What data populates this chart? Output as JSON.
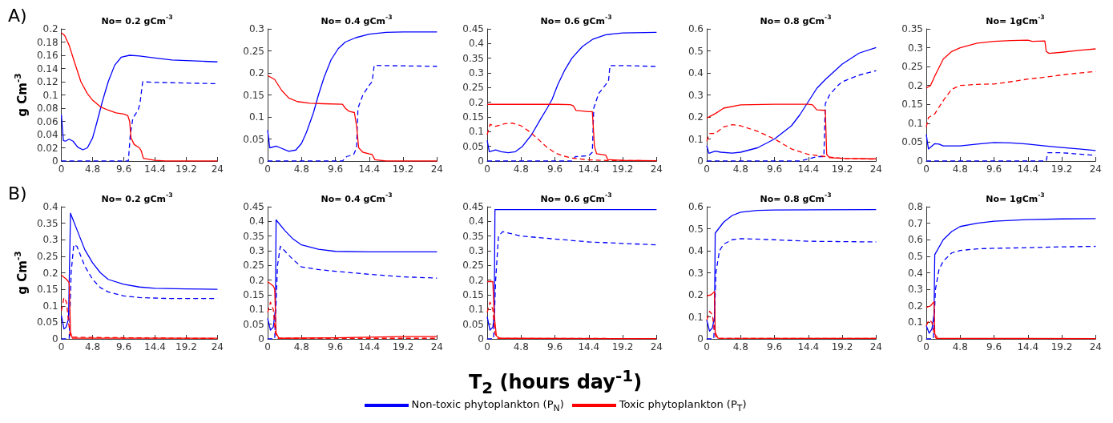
{
  "chart_data": [
    {
      "type": "line",
      "title": "No= 0.2 gCm$^{-3}$",
      "ylabel": "g Cm$^{-3}$",
      "annotations": [
        "A)"
      ],
      "marker": "none",
      "xlim": [
        0,
        24
      ],
      "xticks": [
        0,
        4.8,
        9.6,
        14.4,
        19.2,
        24
      ],
      "ylim": [
        0,
        0.2
      ],
      "yticks": [
        0,
        0.02,
        0.04,
        0.06,
        0.08,
        0.1,
        0.12,
        0.14,
        0.16,
        0.18,
        0.2
      ],
      "series": [
        {
          "color": "#0000ff",
          "line_style": "solid",
          "x": [
            0,
            0.3,
            0.6,
            1.2,
            1.8,
            2.5,
            3.3,
            4,
            4.8,
            5.5,
            6.3,
            7.2,
            8.2,
            9.2,
            10.5,
            12,
            14.4,
            17,
            19.2,
            21.6,
            24
          ],
          "values": [
            0.07,
            0.031,
            0.03,
            0.033,
            0.03,
            0.021,
            0.017,
            0.02,
            0.035,
            0.06,
            0.09,
            0.12,
            0.145,
            0.157,
            0.16,
            0.159,
            0.156,
            0.153,
            0.152,
            0.151,
            0.15
          ]
        },
        {
          "color": "#0000ff",
          "line_style": "dashed",
          "x": [
            0,
            10.3,
            10.6,
            11,
            11.8,
            12.1,
            12.5,
            14.4,
            19.2,
            24
          ],
          "values": [
            0,
            0,
            0.04,
            0.065,
            0.077,
            0.088,
            0.12,
            0.119,
            0.118,
            0.117
          ]
        },
        {
          "color": "#ff0000",
          "line_style": "solid",
          "x": [
            0,
            0.5,
            1.2,
            2,
            3,
            4,
            4.8,
            6,
            7.2,
            8.4,
            9.6,
            10.2,
            10.5,
            10.7,
            11.2,
            12,
            12.3,
            12.6,
            14.4,
            16,
            24
          ],
          "values": [
            0.194,
            0.19,
            0.175,
            0.15,
            0.12,
            0.102,
            0.092,
            0.082,
            0.077,
            0.073,
            0.071,
            0.069,
            0.06,
            0.035,
            0.025,
            0.02,
            0.015,
            0.004,
            0.001,
            0,
            0
          ]
        }
      ]
    },
    {
      "type": "line",
      "title": "No= 0.4 gCm$^{-3}$",
      "marker": "none",
      "xlim": [
        0,
        24
      ],
      "xticks": [
        0,
        4.8,
        9.6,
        14.4,
        19.2,
        24
      ],
      "ylim": [
        0,
        0.3
      ],
      "yticks": [
        0,
        0.05,
        0.1,
        0.15,
        0.2,
        0.25,
        0.3
      ],
      "series": [
        {
          "color": "#0000ff",
          "line_style": "solid",
          "x": [
            0,
            0.3,
            1.2,
            1.8,
            3,
            4,
            4.8,
            5.5,
            6.5,
            7.2,
            8,
            9,
            10,
            11,
            12.5,
            14.4,
            16.8,
            19.2,
            24
          ],
          "values": [
            0.07,
            0.03,
            0.034,
            0.03,
            0.022,
            0.025,
            0.04,
            0.065,
            0.11,
            0.15,
            0.19,
            0.23,
            0.255,
            0.27,
            0.28,
            0.288,
            0.292,
            0.293,
            0.293
          ]
        },
        {
          "color": "#0000ff",
          "line_style": "dashed",
          "x": [
            0,
            10.6,
            11.2,
            12.2,
            12.6,
            12.8,
            13.5,
            14.4,
            14.8,
            15.1,
            19.2,
            24
          ],
          "values": [
            0,
            0,
            0.01,
            0.015,
            0.03,
            0.12,
            0.15,
            0.172,
            0.18,
            0.217,
            0.216,
            0.215
          ]
        },
        {
          "color": "#ff0000",
          "line_style": "solid",
          "x": [
            0,
            1,
            2,
            3,
            4.2,
            6,
            8,
            10.6,
            11,
            11.5,
            12.3,
            12.6,
            12.9,
            13.5,
            14.4,
            14.8,
            15.2,
            16.8,
            24
          ],
          "values": [
            0.194,
            0.185,
            0.16,
            0.143,
            0.135,
            0.131,
            0.13,
            0.129,
            0.12,
            0.113,
            0.11,
            0.08,
            0.03,
            0.02,
            0.016,
            0.015,
            0.003,
            0,
            0
          ]
        }
      ]
    },
    {
      "type": "line",
      "title": "No= 0.6 gCm$^{-3}$",
      "marker": "none",
      "xlim": [
        0,
        24
      ],
      "xticks": [
        0,
        4.8,
        9.6,
        14.4,
        19.2,
        24
      ],
      "ylim": [
        0,
        0.45
      ],
      "yticks": [
        0,
        0.05,
        0.1,
        0.15,
        0.2,
        0.25,
        0.3,
        0.35,
        0.4,
        0.45
      ],
      "series": [
        {
          "color": "#0000ff",
          "line_style": "solid",
          "x": [
            0,
            0.3,
            1.2,
            2,
            3,
            4,
            5,
            6.3,
            7.5,
            8.5,
            9.2,
            10,
            11,
            12,
            13.5,
            15,
            16.8,
            19.2,
            24
          ],
          "values": [
            0.07,
            0.032,
            0.038,
            0.032,
            0.028,
            0.032,
            0.05,
            0.09,
            0.14,
            0.18,
            0.21,
            0.26,
            0.31,
            0.35,
            0.39,
            0.415,
            0.43,
            0.436,
            0.438
          ]
        },
        {
          "color": "#0000ff",
          "line_style": "dashed",
          "x": [
            0,
            12,
            12.5,
            14.4,
            14.9,
            15.1,
            15.8,
            16.8,
            17.2,
            17.4,
            19.2,
            24
          ],
          "values": [
            0,
            0,
            0.015,
            0.018,
            0.03,
            0.18,
            0.23,
            0.26,
            0.275,
            0.325,
            0.325,
            0.322
          ]
        },
        {
          "color": "#ff0000",
          "line_style": "solid",
          "x": [
            0,
            10,
            11.8,
            12.2,
            12.6,
            14.4,
            14.9,
            15.2,
            15.5,
            16.8,
            17.1,
            19.2,
            24
          ],
          "values": [
            0.193,
            0.193,
            0.192,
            0.188,
            0.172,
            0.168,
            0.168,
            0.05,
            0.025,
            0.02,
            0.005,
            0.002,
            0.001
          ]
        },
        {
          "color": "#ff0000",
          "line_style": "dashed",
          "x": [
            0,
            0.4,
            1.2,
            2.5,
            3.6,
            4.8,
            6,
            7.2,
            8.4,
            9.6,
            10.8,
            12,
            14.4,
            16.8,
            24
          ],
          "values": [
            0.09,
            0.125,
            0.118,
            0.127,
            0.129,
            0.12,
            0.1,
            0.075,
            0.048,
            0.028,
            0.017,
            0.01,
            0.004,
            0.002,
            0.001
          ]
        }
      ]
    },
    {
      "type": "line",
      "title": "No= 0.8 gCm$^{-3}$",
      "marker": "none",
      "xlim": [
        0,
        24
      ],
      "xticks": [
        0,
        4.8,
        9.6,
        14.4,
        19.2,
        24
      ],
      "ylim": [
        0,
        0.6
      ],
      "yticks": [
        0,
        0.1,
        0.2,
        0.3,
        0.4,
        0.5,
        0.6
      ],
      "series": [
        {
          "color": "#0000ff",
          "line_style": "solid",
          "x": [
            0,
            0.3,
            1.2,
            2,
            3.6,
            4.8,
            7.2,
            9.6,
            12,
            13.2,
            14.4,
            15.6,
            16.8,
            19.2,
            21.6,
            24
          ],
          "values": [
            0.07,
            0.035,
            0.045,
            0.04,
            0.036,
            0.04,
            0.06,
            0.1,
            0.16,
            0.21,
            0.27,
            0.33,
            0.37,
            0.44,
            0.49,
            0.515
          ]
        },
        {
          "color": "#0000ff",
          "line_style": "dashed",
          "x": [
            0,
            13.2,
            14.4,
            15.6,
            16.6,
            16.8,
            17.4,
            18.5,
            19.2,
            21.6,
            24
          ],
          "values": [
            0,
            0,
            0.01,
            0.02,
            0.02,
            0.26,
            0.3,
            0.34,
            0.36,
            0.39,
            0.41
          ]
        },
        {
          "color": "#ff0000",
          "line_style": "solid",
          "x": [
            0,
            1.2,
            2.4,
            4.8,
            9.6,
            14.4,
            15,
            15.6,
            16.8,
            17,
            17.4,
            19.2,
            24
          ],
          "values": [
            0.195,
            0.215,
            0.24,
            0.255,
            0.258,
            0.258,
            0.255,
            0.232,
            0.23,
            0.03,
            0.015,
            0.012,
            0.01
          ]
        },
        {
          "color": "#ff0000",
          "line_style": "dashed",
          "x": [
            0,
            0.4,
            1.2,
            2.4,
            3.6,
            4.8,
            7.2,
            9.6,
            12,
            14.4,
            16.8,
            19.2,
            24
          ],
          "values": [
            0.09,
            0.125,
            0.125,
            0.155,
            0.165,
            0.16,
            0.135,
            0.1,
            0.055,
            0.03,
            0.02,
            0.012,
            0.008
          ]
        }
      ]
    },
    {
      "type": "line",
      "title": "No= 1gCm$^{-3}$",
      "marker": "none",
      "xlim": [
        0,
        24
      ],
      "xticks": [
        0,
        4.8,
        9.6,
        14.4,
        19.2,
        24
      ],
      "ylim": [
        0,
        0.35
      ],
      "yticks": [
        0,
        0.05,
        0.1,
        0.15,
        0.2,
        0.25,
        0.3,
        0.35
      ],
      "series": [
        {
          "color": "#0000ff",
          "line_style": "solid",
          "x": [
            0,
            0.3,
            1.2,
            1.8,
            2.4,
            4.8,
            7.2,
            9.6,
            12,
            14.4,
            16.8,
            19.2,
            21.6,
            24
          ],
          "values": [
            0.07,
            0.032,
            0.046,
            0.045,
            0.04,
            0.04,
            0.045,
            0.049,
            0.048,
            0.045,
            0.04,
            0.036,
            0.032,
            0.028
          ]
        },
        {
          "color": "#0000ff",
          "line_style": "dashed",
          "x": [
            0,
            14.4,
            17,
            17.2,
            19.2,
            24
          ],
          "values": [
            0,
            0,
            0,
            0.022,
            0.022,
            0.015
          ]
        },
        {
          "color": "#ff0000",
          "line_style": "solid",
          "x": [
            0,
            0.6,
            1.2,
            2.4,
            3.6,
            4.8,
            7.2,
            9.6,
            12,
            14.4,
            15,
            16.8,
            17,
            17.4,
            19.2,
            21.6,
            24
          ],
          "values": [
            0.193,
            0.2,
            0.225,
            0.27,
            0.29,
            0.3,
            0.312,
            0.317,
            0.319,
            0.32,
            0.317,
            0.318,
            0.29,
            0.285,
            0.288,
            0.293,
            0.297
          ]
        },
        {
          "color": "#ff0000",
          "line_style": "dashed",
          "x": [
            0,
            0.3,
            1.2,
            2.4,
            3.6,
            4.8,
            7.2,
            9.6,
            12,
            14.4,
            16.8,
            19.2,
            21.6,
            24
          ],
          "values": [
            0.09,
            0.115,
            0.125,
            0.16,
            0.19,
            0.2,
            0.203,
            0.204,
            0.21,
            0.217,
            0.222,
            0.228,
            0.233,
            0.237
          ]
        }
      ]
    },
    {
      "type": "line",
      "title": "No= 0.2 gCm$^{-3}$",
      "ylabel": "g Cm$^{-3}$",
      "annotations": [
        "B)"
      ],
      "marker": "none",
      "xlim": [
        0,
        24
      ],
      "xticks": [
        0,
        4.8,
        9.6,
        14.4,
        19.2,
        24
      ],
      "ylim": [
        0,
        0.4
      ],
      "yticks": [
        0,
        0.05,
        0.1,
        0.15,
        0.2,
        0.25,
        0.3,
        0.35,
        0.4
      ],
      "series": [
        {
          "color": "#0000ff",
          "line_style": "solid",
          "x": [
            0,
            0.4,
            0.7,
            1.1,
            1.4,
            2.4,
            3.6,
            4.8,
            6,
            7.2,
            9.6,
            12,
            14.4,
            19.2,
            24
          ],
          "values": [
            0.07,
            0.03,
            0.035,
            0.06,
            0.38,
            0.33,
            0.27,
            0.23,
            0.2,
            0.18,
            0.165,
            0.157,
            0.153,
            0.151,
            0.15
          ]
        },
        {
          "color": "#0000ff",
          "line_style": "dashed",
          "x": [
            0,
            1.2,
            1.5,
            1.9,
            2.4,
            3.6,
            4.8,
            6,
            7.2,
            9.6,
            12,
            16.8,
            24
          ],
          "values": [
            0,
            0,
            0.2,
            0.285,
            0.28,
            0.22,
            0.18,
            0.155,
            0.142,
            0.13,
            0.125,
            0.122,
            0.122
          ]
        },
        {
          "color": "#ff0000",
          "line_style": "solid",
          "x": [
            0,
            0.8,
            1.2,
            1.4,
            1.7,
            24
          ],
          "values": [
            0.193,
            0.18,
            0.17,
            0.02,
            0.002,
            0.002
          ]
        },
        {
          "color": "#ff0000",
          "line_style": "dashed",
          "x": [
            0,
            0.4,
            0.8,
            1.1,
            1.4,
            24
          ],
          "values": [
            0.085,
            0.125,
            0.11,
            0.05,
            0.005,
            0.001
          ]
        }
      ]
    },
    {
      "type": "line",
      "title": "No= 0.4 gCm$^{-3}$",
      "marker": "none",
      "xlim": [
        0,
        24
      ],
      "xticks": [
        0,
        4.8,
        9.6,
        14.4,
        19.2,
        24
      ],
      "ylim": [
        0,
        0.45
      ],
      "yticks": [
        0,
        0.05,
        0.1,
        0.15,
        0.2,
        0.25,
        0.3,
        0.35,
        0.4,
        0.45
      ],
      "series": [
        {
          "color": "#0000ff",
          "line_style": "solid",
          "x": [
            0,
            0.4,
            0.8,
            1.1,
            1.2,
            2.4,
            3.6,
            4.8,
            7.2,
            9.6,
            14.4,
            24
          ],
          "values": [
            0.07,
            0.03,
            0.04,
            0.1,
            0.405,
            0.37,
            0.34,
            0.32,
            0.305,
            0.298,
            0.296,
            0.296
          ]
        },
        {
          "color": "#0000ff",
          "line_style": "dashed",
          "x": [
            0,
            1,
            1.4,
            1.8,
            2.4,
            3.6,
            4.8,
            7.2,
            9.6,
            14.4,
            19.2,
            24
          ],
          "values": [
            0,
            0,
            0.25,
            0.315,
            0.3,
            0.27,
            0.245,
            0.236,
            0.23,
            0.22,
            0.211,
            0.207
          ]
        },
        {
          "color": "#ff0000",
          "line_style": "solid",
          "x": [
            0,
            0.8,
            1,
            1.2,
            1.6,
            9.6,
            19.2,
            24
          ],
          "values": [
            0.195,
            0.18,
            0.17,
            0.02,
            0.002,
            0.004,
            0.008,
            0.008
          ]
        },
        {
          "color": "#ff0000",
          "line_style": "dashed",
          "x": [
            0,
            0.4,
            0.8,
            1.1,
            1.4,
            24
          ],
          "values": [
            0.09,
            0.125,
            0.1,
            0.02,
            0.002,
            0.002
          ]
        }
      ]
    },
    {
      "type": "line",
      "title": "No= 0.6 gCm$^{-3}$",
      "xlabel": "T$_{2}$ (hours day$^{-1}$)",
      "legend": "bottom",
      "marker": "none",
      "xlim": [
        0,
        24
      ],
      "xticks": [
        0,
        4.8,
        9.6,
        14.4,
        19.2,
        24
      ],
      "ylim": [
        0,
        0.45
      ],
      "yticks": [
        0,
        0.05,
        0.1,
        0.15,
        0.2,
        0.25,
        0.3,
        0.35,
        0.4,
        0.45
      ],
      "series": [
        {
          "name": "Non-toxic phytoplankton (P$_{N}$)",
          "color": "#0000ff",
          "line_style": "solid",
          "x": [
            0,
            0.4,
            0.8,
            1,
            1.1,
            24
          ],
          "values": [
            0.075,
            0.03,
            0.04,
            0.08,
            0.44,
            0.44
          ]
        },
        {
          "color": "#0000ff",
          "line_style": "dashed",
          "x": [
            0,
            0.9,
            1.2,
            1.6,
            2.2,
            4.8,
            9.6,
            14.4,
            19.2,
            24
          ],
          "values": [
            0,
            0,
            0.2,
            0.35,
            0.365,
            0.35,
            0.34,
            0.33,
            0.325,
            0.32
          ]
        },
        {
          "name": "Toxic phytoplankton (P$_{T}$)",
          "color": "#ff0000",
          "line_style": "solid",
          "x": [
            0,
            0.8,
            1,
            1.3,
            1.8,
            24
          ],
          "values": [
            0.195,
            0.195,
            0.08,
            0.01,
            0.002,
            0.001
          ]
        },
        {
          "color": "#ff0000",
          "line_style": "dashed",
          "x": [
            0,
            0.4,
            0.8,
            1.1,
            1.4,
            24
          ],
          "values": [
            0.09,
            0.125,
            0.1,
            0.02,
            0.002,
            0.001
          ]
        }
      ]
    },
    {
      "type": "line",
      "title": "No= 0.8 gCm$^{-3}$",
      "marker": "none",
      "xlim": [
        0,
        24
      ],
      "xticks": [
        0,
        4.8,
        9.6,
        14.4,
        19.2,
        24
      ],
      "ylim": [
        0,
        0.6
      ],
      "yticks": [
        0,
        0.1,
        0.2,
        0.3,
        0.4,
        0.5,
        0.6
      ],
      "series": [
        {
          "color": "#0000ff",
          "line_style": "solid",
          "x": [
            0,
            0.4,
            0.8,
            1.1,
            1.2,
            2.4,
            3.6,
            4.8,
            7.2,
            9.6,
            24
          ],
          "values": [
            0.085,
            0.035,
            0.05,
            0.1,
            0.48,
            0.53,
            0.56,
            0.575,
            0.583,
            0.585,
            0.587
          ]
        },
        {
          "color": "#0000ff",
          "line_style": "dashed",
          "x": [
            0,
            1,
            1.3,
            1.8,
            2.4,
            3.6,
            4.8,
            9.6,
            14.4,
            24
          ],
          "values": [
            0,
            0,
            0.3,
            0.4,
            0.43,
            0.45,
            0.455,
            0.45,
            0.443,
            0.44
          ]
        },
        {
          "color": "#ff0000",
          "line_style": "solid",
          "x": [
            0,
            0.6,
            1.1,
            1.2,
            1.6,
            24
          ],
          "values": [
            0.195,
            0.2,
            0.215,
            0.03,
            0.003,
            0.002
          ]
        },
        {
          "color": "#ff0000",
          "line_style": "dashed",
          "x": [
            0,
            0.4,
            0.8,
            1.1,
            1.4,
            24
          ],
          "values": [
            0.085,
            0.125,
            0.11,
            0.03,
            0.002,
            0.002
          ]
        }
      ]
    },
    {
      "type": "line",
      "title": "No= 1gCm$^{-3}$",
      "marker": "none",
      "xlim": [
        0,
        24
      ],
      "xticks": [
        0,
        4.8,
        9.6,
        14.4,
        19.2,
        24
      ],
      "ylim": [
        0,
        0.8
      ],
      "yticks": [
        0,
        0.1,
        0.2,
        0.3,
        0.4,
        0.5,
        0.6,
        0.7,
        0.8
      ],
      "series": [
        {
          "color": "#0000ff",
          "line_style": "solid",
          "x": [
            0,
            0.4,
            0.8,
            1.1,
            1.2,
            2.4,
            3.6,
            4.8,
            7.2,
            9.6,
            14.4,
            19.2,
            24
          ],
          "values": [
            0.08,
            0.035,
            0.06,
            0.15,
            0.51,
            0.6,
            0.65,
            0.68,
            0.7,
            0.712,
            0.722,
            0.726,
            0.728
          ]
        },
        {
          "color": "#0000ff",
          "line_style": "dashed",
          "x": [
            0,
            1,
            1.3,
            1.8,
            2.4,
            3.6,
            4.8,
            7.2,
            9.6,
            14.4,
            19.2,
            24
          ],
          "values": [
            0,
            0,
            0.3,
            0.42,
            0.47,
            0.52,
            0.535,
            0.545,
            0.548,
            0.552,
            0.557,
            0.56
          ]
        },
        {
          "color": "#ff0000",
          "line_style": "solid",
          "x": [
            0,
            0.6,
            1.1,
            1.2,
            1.6,
            24
          ],
          "values": [
            0.19,
            0.2,
            0.225,
            0.03,
            0.003,
            0.002
          ]
        },
        {
          "color": "#ff0000",
          "line_style": "dashed",
          "x": [
            0,
            0.4,
            0.8,
            1.1,
            1.4,
            24
          ],
          "values": [
            0.08,
            0.115,
            0.1,
            0.03,
            0.002,
            0.002
          ]
        }
      ]
    }
  ]
}
